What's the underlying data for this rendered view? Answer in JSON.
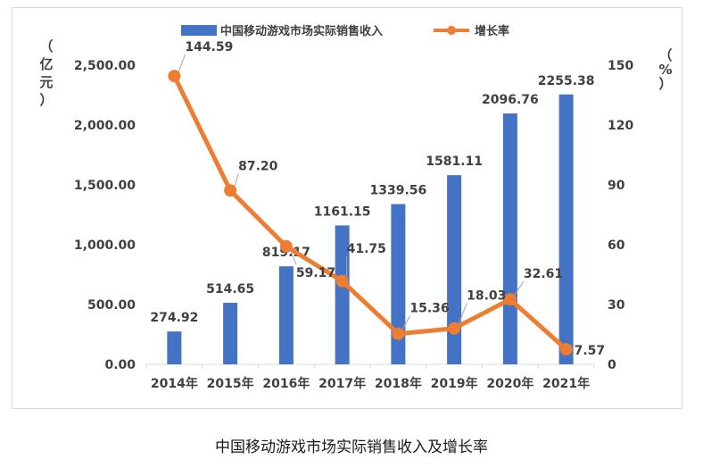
{
  "caption": "中国移动游戏市场实际销售收入及增长率",
  "chart_data": {
    "type": "bar",
    "categories": [
      "2014年",
      "2015年",
      "2016年",
      "2017年",
      "2018年",
      "2019年",
      "2020年",
      "2021年"
    ],
    "series": [
      {
        "name": "中国移动游戏市场实际销售收入",
        "type": "bar",
        "axis": "left",
        "color": "#4472c4",
        "values": [
          274.92,
          514.65,
          819.17,
          1161.15,
          1339.56,
          1581.11,
          2096.76,
          2255.38
        ],
        "labels": [
          "274.92",
          "514.65",
          "819.17",
          "1161.15",
          "1339.56",
          "1581.11",
          "2096.76",
          "2255.38"
        ]
      },
      {
        "name": "增长率",
        "type": "line",
        "axis": "right",
        "color": "#ed7d31",
        "values": [
          144.59,
          87.2,
          59.17,
          41.75,
          15.36,
          18.03,
          32.61,
          7.57
        ],
        "labels": [
          "144.59",
          "87.20",
          "59.17",
          "41.75",
          "15.36",
          "18.03",
          "32.61",
          "7.57"
        ]
      }
    ],
    "y_left": {
      "label": "（亿元）",
      "ylim": [
        0,
        2500
      ],
      "ticks": [
        0,
        500,
        1000,
        1500,
        2000,
        2500
      ],
      "tick_labels": [
        "0.00",
        "500.00",
        "1,000.00",
        "1,500.00",
        "2,000.00",
        "2,500.00"
      ]
    },
    "y_right": {
      "label": "（%）",
      "ylim": [
        0,
        150
      ],
      "ticks": [
        0,
        30,
        60,
        90,
        120,
        150
      ],
      "tick_labels": [
        "0",
        "30",
        "60",
        "90",
        "120",
        "150"
      ]
    },
    "grid": false,
    "legend_position": "top"
  }
}
